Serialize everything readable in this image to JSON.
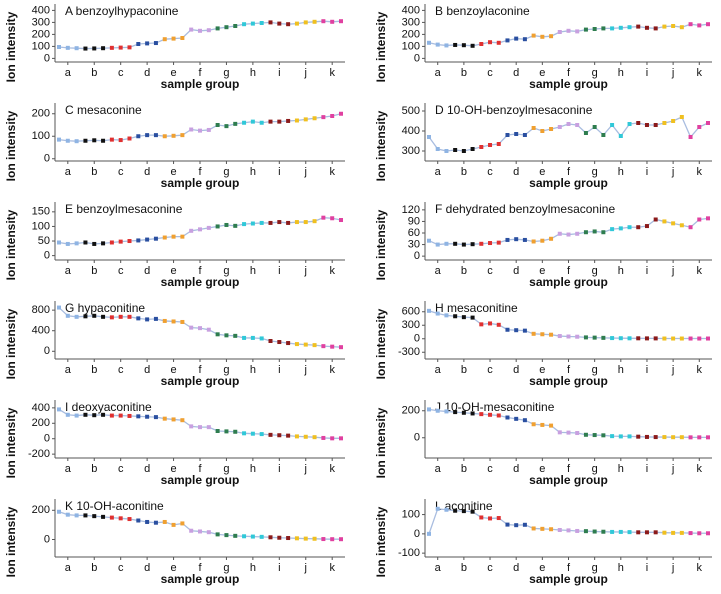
{
  "group_colors": [
    "#8fb4e3",
    "#111111",
    "#e03030",
    "#2a4fa0",
    "#f0a030",
    "#c8a0e0",
    "#2e7d4f",
    "#30c8d8",
    "#8b1a1a",
    "#f0c020",
    "#e040a0"
  ],
  "line_color": "#a9bde0",
  "chart_data": [
    {
      "type": "line",
      "title": "A benzoylhypaconine",
      "xlabel": "sample group",
      "ylabel": "Ion intensity",
      "categories": [
        null,
        "a",
        null,
        null,
        "b",
        null,
        null,
        "c",
        null,
        null,
        "d",
        null,
        null,
        "e",
        null,
        null,
        "f",
        null,
        null,
        "g",
        null,
        null,
        "h",
        null,
        null,
        "i",
        null,
        null,
        "j",
        null,
        null,
        "k",
        null
      ],
      "values": [
        95,
        88,
        85,
        82,
        83,
        85,
        88,
        90,
        92,
        120,
        125,
        128,
        160,
        165,
        170,
        240,
        230,
        235,
        250,
        260,
        270,
        285,
        290,
        295,
        300,
        290,
        285,
        290,
        300,
        305,
        310,
        305,
        310
      ],
      "ylim": [
        -30,
        420
      ],
      "yticks": [
        0,
        100,
        200,
        300,
        400
      ]
    },
    {
      "type": "line",
      "title": "B benzoylaconine",
      "xlabel": "sample group",
      "ylabel": "Ion intensity",
      "categories": [
        null,
        "a",
        null,
        null,
        "b",
        null,
        null,
        "c",
        null,
        null,
        "d",
        null,
        null,
        "e",
        null,
        null,
        "f",
        null,
        null,
        "g",
        null,
        null,
        "h",
        null,
        null,
        "i",
        null,
        null,
        "j",
        null,
        null,
        "k",
        null
      ],
      "values": [
        130,
        115,
        108,
        112,
        110,
        105,
        120,
        135,
        130,
        150,
        165,
        160,
        190,
        180,
        185,
        220,
        230,
        225,
        240,
        245,
        250,
        250,
        255,
        260,
        265,
        255,
        250,
        265,
        270,
        260,
        285,
        275,
        285
      ],
      "ylim": [
        -30,
        420
      ],
      "yticks": [
        0,
        100,
        200,
        300,
        400
      ]
    },
    {
      "type": "line",
      "title": "C mesaconine",
      "xlabel": "sample group",
      "ylabel": "Ion intensity",
      "categories": [
        null,
        "a",
        null,
        null,
        "b",
        null,
        null,
        "c",
        null,
        null,
        "d",
        null,
        null,
        "e",
        null,
        null,
        "f",
        null,
        null,
        "g",
        null,
        null,
        "h",
        null,
        null,
        "i",
        null,
        null,
        "j",
        null,
        null,
        "k",
        null
      ],
      "values": [
        85,
        80,
        78,
        80,
        82,
        80,
        85,
        83,
        90,
        100,
        105,
        105,
        100,
        102,
        105,
        130,
        125,
        128,
        150,
        145,
        155,
        160,
        165,
        160,
        165,
        165,
        168,
        170,
        175,
        180,
        185,
        190,
        200
      ],
      "ylim": [
        -10,
        230
      ],
      "yticks": [
        0,
        100,
        200
      ]
    },
    {
      "type": "line",
      "title": "D 10-OH-benzoylmesaconine",
      "xlabel": "sample group",
      "ylabel": "Ion intensity",
      "categories": [
        null,
        "a",
        null,
        null,
        "b",
        null,
        null,
        "c",
        null,
        null,
        "d",
        null,
        null,
        "e",
        null,
        null,
        "f",
        null,
        null,
        "g",
        null,
        null,
        "h",
        null,
        null,
        "i",
        null,
        null,
        "j",
        null,
        null,
        "k",
        null
      ],
      "values": [
        370,
        310,
        300,
        305,
        300,
        310,
        320,
        330,
        335,
        380,
        385,
        380,
        415,
        400,
        410,
        420,
        435,
        430,
        390,
        420,
        380,
        430,
        375,
        435,
        440,
        430,
        430,
        440,
        450,
        470,
        370,
        420,
        440
      ],
      "ylim": [
        250,
        520
      ],
      "yticks": [
        300,
        400,
        500
      ]
    },
    {
      "type": "line",
      "title": "E benzoylmesaconine",
      "xlabel": "sample group",
      "ylabel": "Ion intensity",
      "categories": [
        null,
        "a",
        null,
        null,
        "b",
        null,
        null,
        "c",
        null,
        null,
        "d",
        null,
        null,
        "e",
        null,
        null,
        "f",
        null,
        null,
        "g",
        null,
        null,
        "h",
        null,
        null,
        "i",
        null,
        null,
        "j",
        null,
        null,
        "k",
        null
      ],
      "values": [
        45,
        40,
        42,
        45,
        40,
        42,
        45,
        48,
        50,
        52,
        55,
        58,
        62,
        65,
        65,
        85,
        90,
        95,
        100,
        105,
        102,
        108,
        110,
        112,
        112,
        115,
        112,
        115,
        115,
        118,
        130,
        128,
        122
      ],
      "ylim": [
        -15,
        170
      ],
      "yticks": [
        0,
        50,
        100,
        150
      ]
    },
    {
      "type": "line",
      "title": "F dehydrated benzoylmesaconine",
      "xlabel": "sample group",
      "ylabel": "Ion intensity",
      "categories": [
        null,
        "a",
        null,
        null,
        "b",
        null,
        null,
        "c",
        null,
        null,
        "d",
        null,
        null,
        "e",
        null,
        null,
        "f",
        null,
        null,
        "g",
        null,
        null,
        "h",
        null,
        null,
        "i",
        null,
        null,
        "j",
        null,
        null,
        "k",
        null
      ],
      "values": [
        40,
        30,
        32,
        32,
        30,
        31,
        32,
        34,
        35,
        42,
        44,
        42,
        38,
        40,
        45,
        58,
        56,
        58,
        62,
        64,
        62,
        70,
        72,
        75,
        75,
        78,
        95,
        90,
        85,
        80,
        75,
        95,
        98
      ],
      "ylim": [
        -10,
        130
      ],
      "yticks": [
        0,
        30,
        60,
        90,
        120
      ]
    },
    {
      "type": "line",
      "title": "G hypaconitine",
      "xlabel": "sample group",
      "ylabel": "Ion intensity",
      "categories": [
        null,
        "a",
        null,
        null,
        "b",
        null,
        null,
        "c",
        null,
        null,
        "d",
        null,
        null,
        "e",
        null,
        null,
        "f",
        null,
        null,
        "g",
        null,
        null,
        "h",
        null,
        null,
        "i",
        null,
        null,
        "j",
        null,
        null,
        "k",
        null
      ],
      "values": [
        850,
        690,
        670,
        680,
        690,
        670,
        660,
        670,
        670,
        640,
        620,
        630,
        590,
        580,
        570,
        460,
        450,
        420,
        330,
        310,
        300,
        260,
        260,
        250,
        200,
        180,
        160,
        140,
        130,
        120,
        100,
        90,
        80
      ],
      "ylim": [
        -150,
        900
      ],
      "yticks": [
        0,
        400,
        800
      ]
    },
    {
      "type": "line",
      "title": "H mesaconitine",
      "xlabel": "sample group",
      "ylabel": "Ion intensity",
      "categories": [
        null,
        "a",
        null,
        null,
        "b",
        null,
        null,
        "c",
        null,
        null,
        "d",
        null,
        null,
        "e",
        null,
        null,
        "f",
        null,
        null,
        "g",
        null,
        null,
        "h",
        null,
        null,
        "i",
        null,
        null,
        "j",
        null,
        null,
        "k",
        null
      ],
      "values": [
        620,
        560,
        520,
        500,
        480,
        470,
        320,
        340,
        310,
        200,
        190,
        180,
        110,
        100,
        90,
        60,
        50,
        45,
        30,
        25,
        20,
        15,
        12,
        10,
        10,
        8,
        8,
        5,
        5,
        5,
        5,
        5,
        5
      ],
      "ylim": [
        -450,
        750
      ],
      "yticks": [
        -300,
        0,
        300,
        600
      ]
    },
    {
      "type": "line",
      "title": "I deoxyaconitine",
      "xlabel": "sample group",
      "ylabel": "Ion intensity",
      "categories": [
        null,
        "a",
        null,
        null,
        "b",
        null,
        null,
        "c",
        null,
        null,
        "d",
        null,
        null,
        "e",
        null,
        null,
        "f",
        null,
        null,
        "g",
        null,
        null,
        "h",
        null,
        null,
        "i",
        null,
        null,
        "j",
        null,
        null,
        "k",
        null
      ],
      "values": [
        380,
        310,
        300,
        310,
        305,
        310,
        300,
        300,
        295,
        290,
        285,
        280,
        260,
        250,
        240,
        160,
        150,
        150,
        100,
        95,
        90,
        70,
        65,
        60,
        50,
        45,
        40,
        30,
        25,
        20,
        10,
        5,
        5
      ],
      "ylim": [
        -250,
        450
      ],
      "yticks": [
        -200,
        0,
        200,
        400
      ]
    },
    {
      "type": "line",
      "title": "J 10-OH-mesaconitine",
      "xlabel": "sample group",
      "ylabel": "Ion intensity",
      "categories": [
        null,
        "a",
        null,
        null,
        "b",
        null,
        null,
        "c",
        null,
        null,
        "d",
        null,
        null,
        "e",
        null,
        null,
        "f",
        null,
        null,
        "g",
        null,
        null,
        "h",
        null,
        null,
        "i",
        null,
        null,
        "j",
        null,
        null,
        "k",
        null
      ],
      "values": [
        210,
        200,
        195,
        190,
        185,
        180,
        175,
        170,
        165,
        150,
        140,
        130,
        100,
        95,
        90,
        40,
        38,
        35,
        22,
        20,
        18,
        12,
        10,
        10,
        8,
        6,
        5,
        5,
        4,
        4,
        3,
        3,
        3
      ],
      "ylim": [
        -150,
        250
      ],
      "yticks": [
        0,
        200
      ]
    },
    {
      "type": "line",
      "title": "K 10-OH-aconitine",
      "xlabel": "sample group",
      "ylabel": "Ion intensity",
      "categories": [
        null,
        "a",
        null,
        null,
        "b",
        null,
        null,
        "c",
        null,
        null,
        "d",
        null,
        null,
        "e",
        null,
        null,
        "f",
        null,
        null,
        "g",
        null,
        null,
        "h",
        null,
        null,
        "i",
        null,
        null,
        "j",
        null,
        null,
        "k",
        null
      ],
      "values": [
        190,
        170,
        165,
        165,
        160,
        155,
        150,
        145,
        140,
        130,
        120,
        115,
        120,
        100,
        110,
        60,
        55,
        50,
        35,
        30,
        25,
        22,
        20,
        18,
        15,
        12,
        10,
        8,
        6,
        5,
        3,
        2,
        2
      ],
      "ylim": [
        -120,
        250
      ],
      "yticks": [
        0,
        200
      ]
    },
    {
      "type": "line",
      "title": "L aconitine",
      "xlabel": "sample group",
      "ylabel": "Ion intensity",
      "categories": [
        null,
        "a",
        null,
        null,
        "b",
        null,
        null,
        "c",
        null,
        null,
        "d",
        null,
        null,
        "e",
        null,
        null,
        "f",
        null,
        null,
        "g",
        null,
        null,
        "h",
        null,
        null,
        "i",
        null,
        null,
        "j",
        null,
        null,
        "k",
        null
      ],
      "values": [
        0,
        130,
        125,
        120,
        118,
        115,
        85,
        80,
        82,
        48,
        45,
        47,
        28,
        26,
        24,
        20,
        18,
        15,
        14,
        12,
        11,
        10,
        10,
        9,
        8,
        8,
        8,
        6,
        5,
        5,
        4,
        3,
        3
      ],
      "ylim": [
        -120,
        160
      ],
      "yticks": [
        -100,
        0,
        100
      ]
    }
  ]
}
